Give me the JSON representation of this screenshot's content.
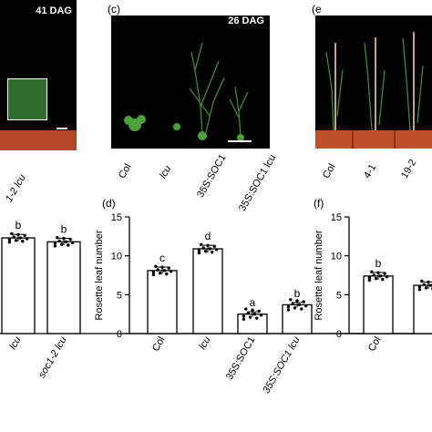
{
  "colors": {
    "photo_bg": "#000000",
    "pot": "#c0502a",
    "plant": "#3d8b2f",
    "bar_fill": "#ffffff",
    "ink": "#000000"
  },
  "panel_b_photo": {
    "dag_label": "41 DAG",
    "labels": [
      "1-2 lcu"
    ]
  },
  "panel_c_photo": {
    "panel_letter": "(c)",
    "dag_label": "26 DAG",
    "labels": [
      "Col",
      "lcu",
      "35S:SOC1",
      "35S:SOC1 lcu"
    ]
  },
  "panel_e_photo": {
    "panel_letter": "(e",
    "labels": [
      "Col",
      "4-1",
      "19-2"
    ]
  },
  "panel_d_letter": "(d)",
  "panel_f_letter": "(f)",
  "chart_data": [
    {
      "type": "bar",
      "panel": "b (partial)",
      "categories": [
        "lcu",
        "soc1-2 lcu"
      ],
      "values": [
        12.3,
        11.8
      ],
      "significance": [
        "b",
        "b"
      ],
      "ylim": [
        0,
        15
      ],
      "yticks": [],
      "ylabel": "",
      "grid": false
    },
    {
      "type": "bar",
      "panel": "d",
      "categories": [
        "Col",
        "lcu",
        "35S:SOC1",
        "35S:SOC1 lcu"
      ],
      "values": [
        8.1,
        10.9,
        2.5,
        3.7
      ],
      "significance": [
        "c",
        "d",
        "a",
        "b"
      ],
      "ylabel": "Rosette leaf number",
      "ylim": [
        0,
        15
      ],
      "yticks": [
        0,
        5,
        10,
        15
      ],
      "grid": false
    },
    {
      "type": "bar",
      "panel": "f (partial)",
      "categories": [
        "Col",
        ""
      ],
      "values": [
        7.4,
        6.2
      ],
      "significance": [
        "b",
        ""
      ],
      "ylabel": "Rosette leaf number",
      "ylim": [
        0,
        15
      ],
      "yticks": [
        0,
        5,
        10,
        15
      ],
      "grid": false
    }
  ]
}
